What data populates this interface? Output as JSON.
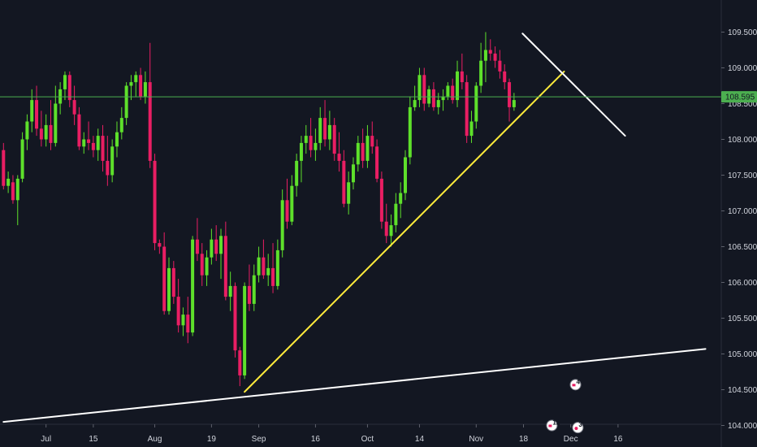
{
  "chart_data": {
    "type": "candlestick",
    "colors": {
      "background": "#131722",
      "up": "#5ee02b",
      "down": "#e91e63",
      "price_line": "#4caf50",
      "price_label_bg": "#4caf50",
      "axis_text": "#d1d4dc",
      "axis_line": "#2a2e39",
      "trend_yellow": "#ffeb3b",
      "trend_white": "#ffffff"
    },
    "y_axis": {
      "min": 104.0,
      "max": 109.75,
      "ticks": [
        {
          "value": 104.0,
          "label": "104.000"
        },
        {
          "value": 104.5,
          "label": "104.500"
        },
        {
          "value": 105.0,
          "label": "105.000"
        },
        {
          "value": 105.5,
          "label": "105.500"
        },
        {
          "value": 106.0,
          "label": "106.000"
        },
        {
          "value": 106.5,
          "label": "106.500"
        },
        {
          "value": 107.0,
          "label": "107.000"
        },
        {
          "value": 107.5,
          "label": "107.500"
        },
        {
          "value": 108.0,
          "label": "108.000"
        },
        {
          "value": 108.5,
          "label": "108.500"
        },
        {
          "value": 109.0,
          "label": "109.000"
        },
        {
          "value": 109.5,
          "label": "109.500"
        }
      ]
    },
    "x_axis": {
      "ticks": [
        {
          "bar": 9,
          "label": "Jul"
        },
        {
          "bar": 19,
          "label": "15"
        },
        {
          "bar": 32,
          "label": "Aug"
        },
        {
          "bar": 44,
          "label": "19"
        },
        {
          "bar": 54,
          "label": "Sep"
        },
        {
          "bar": 66,
          "label": "16"
        },
        {
          "bar": 77,
          "label": "Oct"
        },
        {
          "bar": 88,
          "label": "14"
        },
        {
          "bar": 100,
          "label": "Nov"
        },
        {
          "bar": 110,
          "label": "18"
        },
        {
          "bar": 120,
          "label": "Dec"
        },
        {
          "bar": 130,
          "label": "16"
        }
      ]
    },
    "current_price": {
      "value": 108.595,
      "label": "108.595"
    },
    "candles": [
      [
        107.85,
        107.95,
        107.3,
        107.35
      ],
      [
        107.35,
        107.55,
        107.25,
        107.45
      ],
      [
        107.4,
        107.5,
        107.1,
        107.15
      ],
      [
        107.15,
        107.5,
        106.8,
        107.45
      ],
      [
        107.45,
        108.1,
        107.4,
        108.0
      ],
      [
        108.0,
        108.35,
        107.85,
        108.25
      ],
      [
        108.25,
        108.7,
        108.1,
        108.55
      ],
      [
        108.55,
        108.75,
        108.05,
        108.15
      ],
      [
        108.15,
        108.4,
        107.9,
        108.0
      ],
      [
        108.0,
        108.35,
        107.9,
        108.2
      ],
      [
        108.2,
        108.55,
        107.85,
        107.95
      ],
      [
        107.95,
        108.75,
        107.9,
        108.5
      ],
      [
        108.5,
        108.8,
        108.35,
        108.7
      ],
      [
        108.7,
        108.95,
        108.55,
        108.9
      ],
      [
        108.9,
        108.95,
        108.45,
        108.55
      ],
      [
        108.55,
        108.75,
        108.2,
        108.35
      ],
      [
        108.35,
        108.45,
        107.85,
        107.9
      ],
      [
        107.9,
        108.1,
        107.8,
        108.0
      ],
      [
        108.0,
        108.25,
        107.85,
        107.95
      ],
      [
        107.95,
        108.05,
        107.75,
        107.85
      ],
      [
        107.85,
        108.15,
        107.7,
        108.05
      ],
      [
        108.05,
        108.2,
        107.55,
        107.7
      ],
      [
        107.7,
        108.05,
        107.35,
        107.5
      ],
      [
        107.5,
        108.0,
        107.4,
        107.9
      ],
      [
        107.9,
        108.25,
        107.75,
        108.1
      ],
      [
        108.1,
        108.45,
        108.0,
        108.3
      ],
      [
        108.3,
        108.8,
        108.2,
        108.75
      ],
      [
        108.75,
        108.9,
        108.55,
        108.8
      ],
      [
        108.8,
        108.95,
        108.6,
        108.9
      ],
      [
        108.9,
        109.0,
        108.55,
        108.6
      ],
      [
        108.6,
        108.95,
        108.5,
        108.8
      ],
      [
        108.8,
        109.35,
        107.6,
        107.7
      ],
      [
        107.7,
        107.8,
        106.45,
        106.55
      ],
      [
        106.55,
        106.6,
        106.4,
        106.5
      ],
      [
        106.5,
        106.7,
        105.55,
        105.6
      ],
      [
        105.6,
        106.35,
        105.55,
        106.2
      ],
      [
        106.2,
        106.3,
        105.7,
        105.8
      ],
      [
        105.8,
        106.05,
        105.3,
        105.4
      ],
      [
        105.4,
        105.65,
        105.25,
        105.55
      ],
      [
        105.55,
        105.8,
        105.15,
        105.3
      ],
      [
        105.3,
        106.65,
        105.25,
        106.6
      ],
      [
        106.6,
        106.9,
        106.3,
        106.4
      ],
      [
        106.4,
        106.55,
        105.95,
        106.1
      ],
      [
        106.1,
        106.45,
        105.95,
        106.35
      ],
      [
        106.35,
        106.75,
        106.25,
        106.6
      ],
      [
        106.6,
        106.8,
        106.3,
        106.4
      ],
      [
        106.4,
        106.75,
        106.05,
        106.65
      ],
      [
        106.65,
        106.85,
        105.75,
        105.8
      ],
      [
        105.8,
        106.15,
        105.6,
        105.95
      ],
      [
        105.95,
        106.0,
        104.95,
        105.05
      ],
      [
        105.05,
        105.1,
        104.55,
        104.7
      ],
      [
        104.7,
        106.0,
        104.65,
        105.95
      ],
      [
        105.95,
        106.25,
        105.6,
        105.7
      ],
      [
        105.7,
        106.25,
        105.6,
        106.1
      ],
      [
        106.1,
        106.5,
        106.0,
        106.35
      ],
      [
        106.35,
        106.6,
        106.05,
        106.1
      ],
      [
        106.1,
        106.4,
        105.95,
        106.2
      ],
      [
        106.2,
        106.55,
        105.85,
        105.95
      ],
      [
        105.95,
        106.6,
        105.9,
        106.45
      ],
      [
        106.45,
        107.3,
        106.35,
        107.15
      ],
      [
        107.15,
        107.45,
        106.75,
        106.85
      ],
      [
        106.85,
        107.5,
        106.8,
        107.35
      ],
      [
        107.35,
        107.8,
        107.2,
        107.7
      ],
      [
        107.7,
        108.05,
        107.4,
        107.95
      ],
      [
        107.95,
        108.2,
        107.8,
        108.05
      ],
      [
        108.05,
        108.3,
        107.75,
        107.85
      ],
      [
        107.85,
        108.15,
        107.7,
        107.95
      ],
      [
        107.95,
        108.45,
        107.85,
        108.3
      ],
      [
        108.3,
        108.55,
        107.9,
        108.0
      ],
      [
        108.0,
        108.4,
        107.85,
        108.2
      ],
      [
        108.2,
        108.3,
        107.7,
        107.8
      ],
      [
        107.8,
        108.1,
        107.55,
        107.7
      ],
      [
        107.7,
        107.85,
        107.05,
        107.1
      ],
      [
        107.1,
        107.55,
        106.95,
        107.4
      ],
      [
        107.4,
        107.75,
        107.3,
        107.65
      ],
      [
        107.65,
        108.05,
        107.55,
        107.95
      ],
      [
        107.95,
        108.15,
        107.6,
        107.7
      ],
      [
        107.7,
        108.2,
        107.6,
        108.05
      ],
      [
        108.05,
        108.25,
        107.8,
        107.9
      ],
      [
        107.9,
        108.0,
        107.4,
        107.45
      ],
      [
        107.45,
        107.55,
        106.75,
        106.85
      ],
      [
        106.85,
        107.1,
        106.55,
        106.65
      ],
      [
        106.65,
        106.95,
        106.5,
        106.8
      ],
      [
        106.8,
        107.25,
        106.7,
        107.1
      ],
      [
        107.1,
        107.4,
        106.9,
        107.25
      ],
      [
        107.25,
        107.85,
        107.15,
        107.75
      ],
      [
        107.75,
        108.6,
        107.65,
        108.45
      ],
      [
        108.45,
        108.75,
        108.4,
        108.55
      ],
      [
        108.55,
        109.0,
        108.45,
        108.9
      ],
      [
        108.9,
        109.0,
        108.4,
        108.5
      ],
      [
        108.5,
        108.75,
        108.45,
        108.7
      ],
      [
        108.7,
        108.8,
        108.4,
        108.45
      ],
      [
        108.45,
        108.65,
        108.35,
        108.55
      ],
      [
        108.55,
        108.7,
        108.4,
        108.6
      ],
      [
        108.6,
        108.8,
        108.55,
        108.75
      ],
      [
        108.75,
        108.85,
        108.5,
        108.55
      ],
      [
        108.55,
        109.1,
        108.45,
        108.95
      ],
      [
        108.95,
        109.2,
        108.7,
        108.8
      ],
      [
        108.8,
        108.9,
        107.95,
        108.05
      ],
      [
        108.05,
        108.4,
        107.95,
        108.25
      ],
      [
        108.25,
        108.8,
        108.15,
        108.75
      ],
      [
        108.75,
        109.35,
        108.65,
        109.1
      ],
      [
        109.1,
        109.5,
        108.8,
        109.25
      ],
      [
        109.25,
        109.4,
        109.1,
        109.2
      ],
      [
        109.2,
        109.3,
        109.0,
        109.1
      ],
      [
        109.1,
        109.25,
        108.85,
        108.95
      ],
      [
        108.95,
        109.05,
        108.7,
        108.8
      ],
      [
        108.8,
        108.85,
        108.25,
        108.45
      ],
      [
        108.45,
        108.65,
        108.4,
        108.55
      ]
    ],
    "trend_lines": [
      {
        "color": "yellow",
        "from": [
          51.0,
          104.47
        ],
        "to": [
          118.6,
          108.95
        ]
      },
      {
        "color": "white",
        "from": [
          0.0,
          104.05
        ],
        "to": [
          148.5,
          105.07
        ]
      },
      {
        "color": "white",
        "from": [
          109.8,
          109.48
        ],
        "to": [
          131.5,
          108.05
        ]
      }
    ],
    "event_markers": [
      {
        "bar": 116.0,
        "value": 104.0,
        "label": "12",
        "kind": "flag"
      },
      {
        "bar": 121.0,
        "value": 104.57,
        "label": "4",
        "kind": "flag"
      },
      {
        "bar": 121.5,
        "value": 103.97,
        "label": "3",
        "kind": "dot"
      }
    ]
  }
}
